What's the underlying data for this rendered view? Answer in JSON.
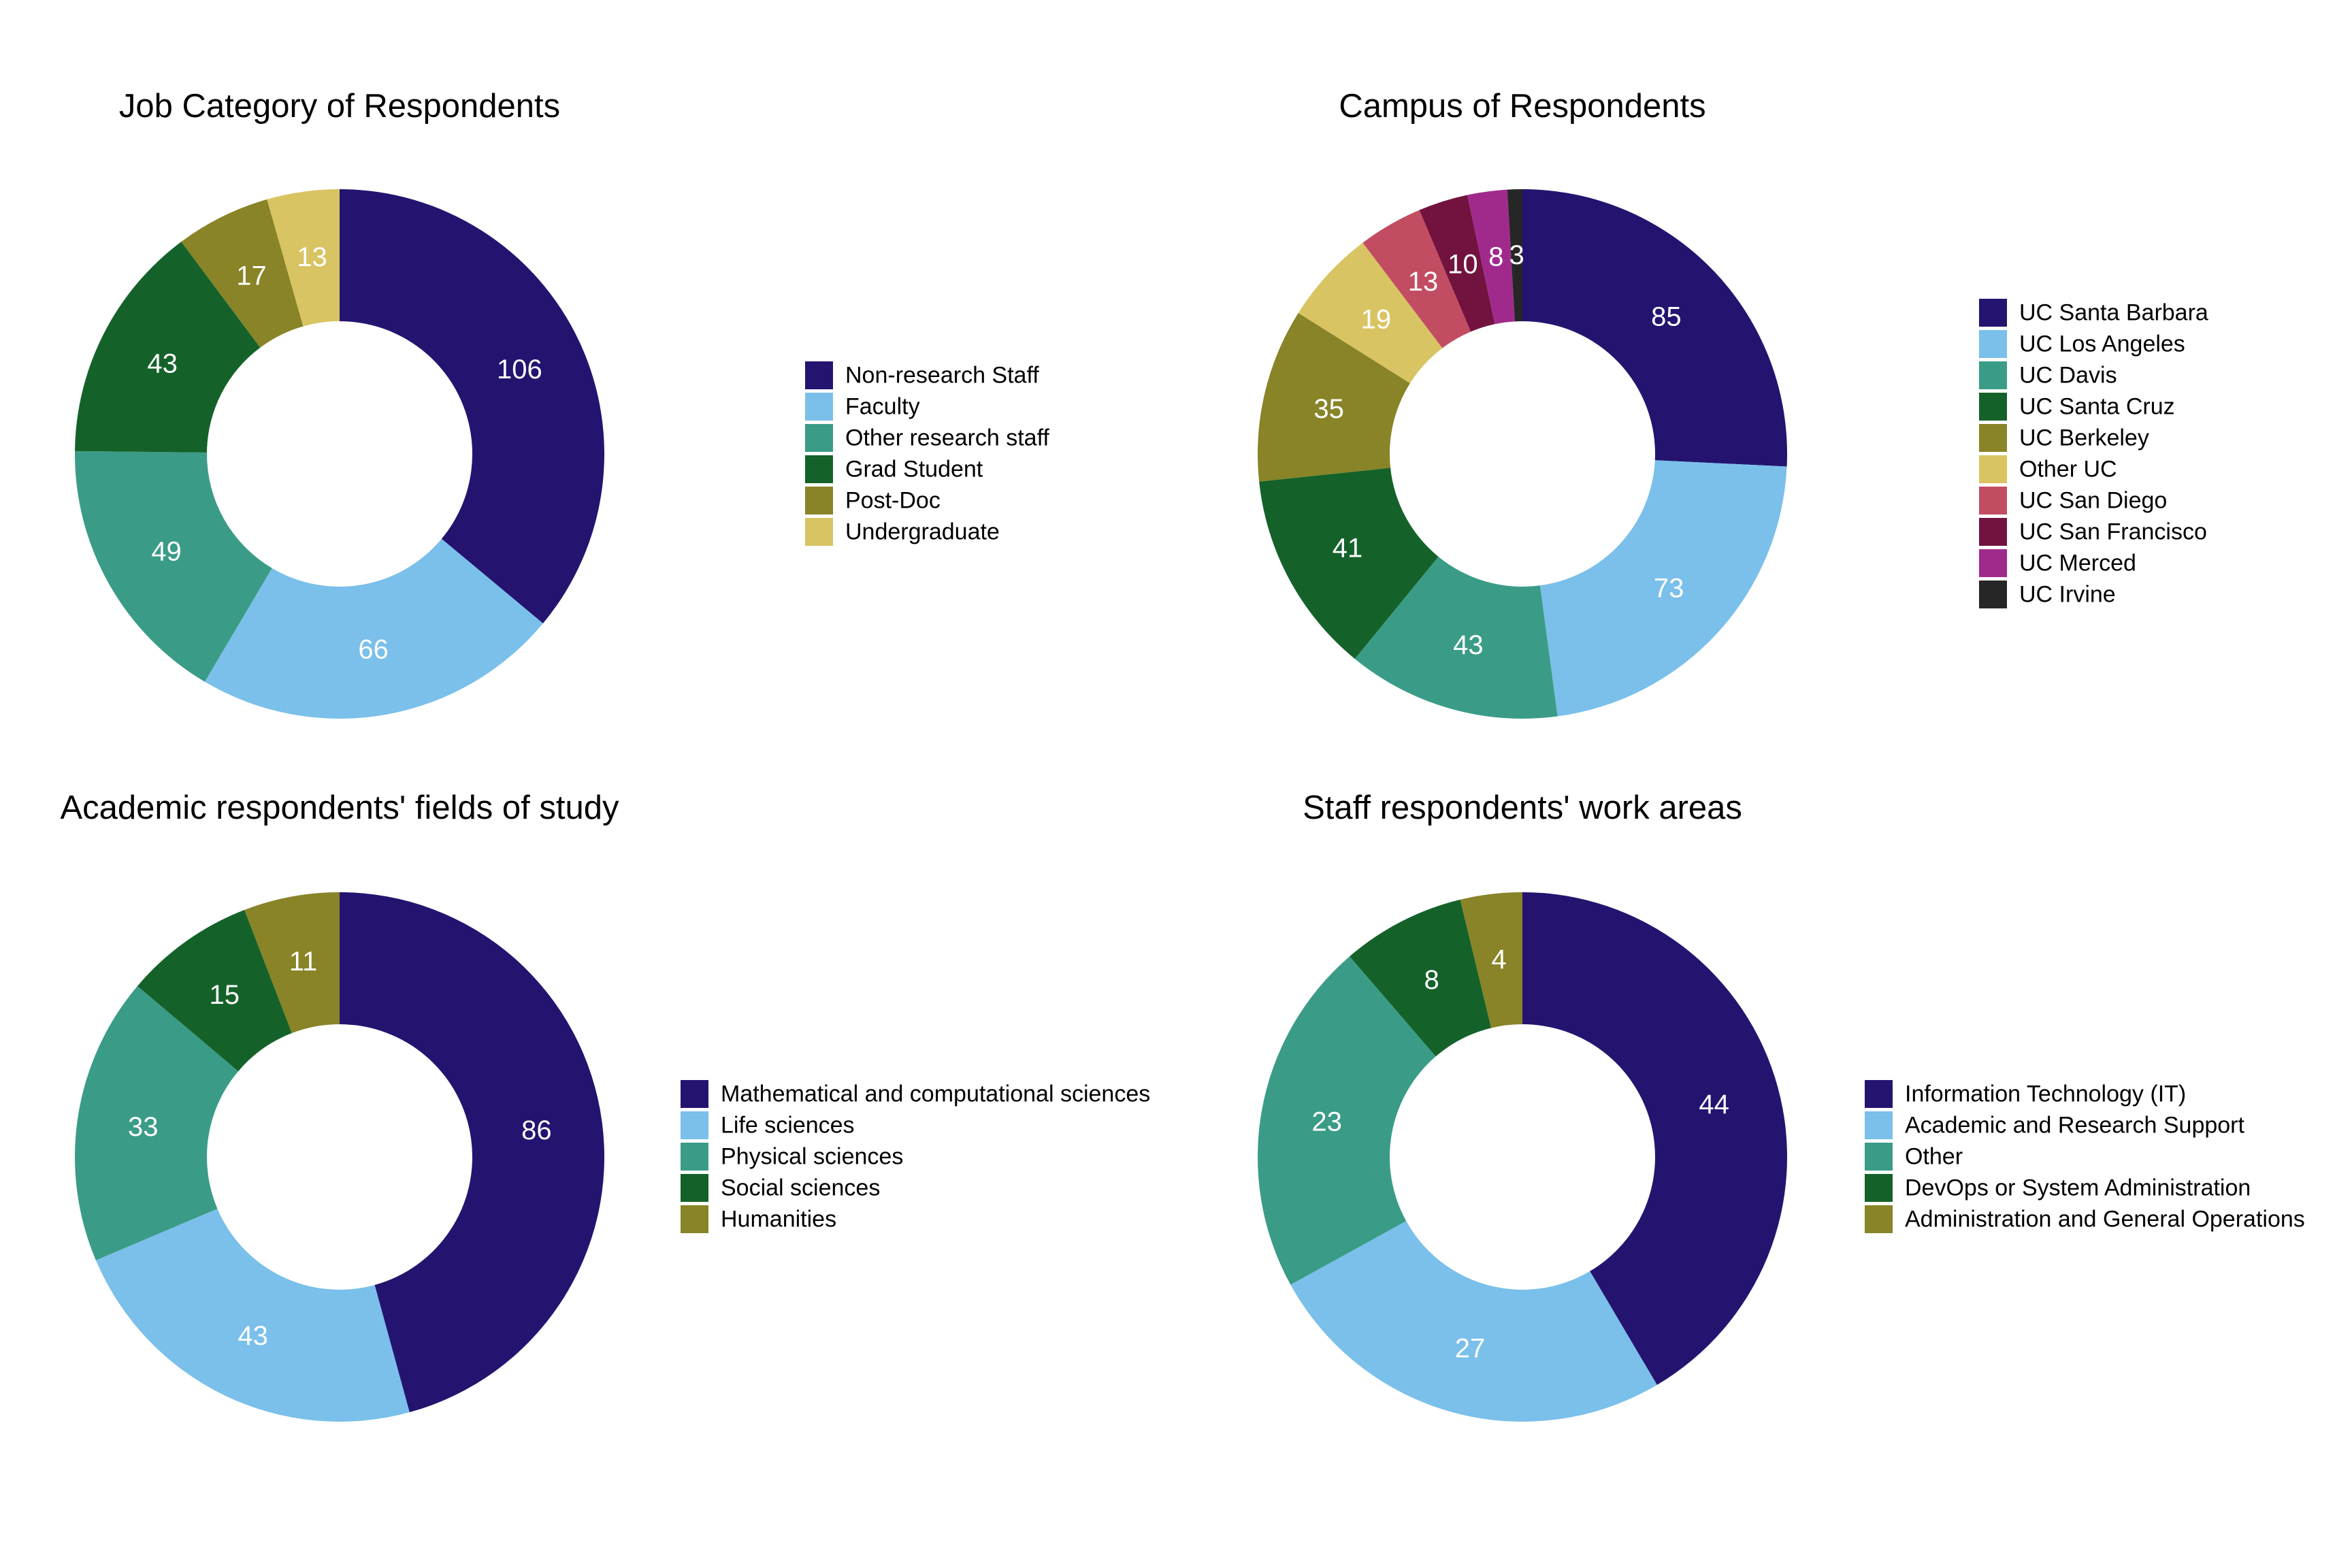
{
  "chart_data": [
    {
      "type": "donut",
      "title": "Job Category of Respondents",
      "categories": [
        "Non-research Staff",
        "Faculty",
        "Other research staff",
        "Grad Student",
        "Post-Doc",
        "Undergraduate"
      ],
      "values": [
        106,
        66,
        49,
        43,
        17,
        13
      ],
      "colors": [
        "#241470",
        "#7ac0ea",
        "#3a9c86",
        "#14622a",
        "#888427",
        "#d8c462"
      ],
      "legend": "right",
      "start": "top",
      "direction": "clockwise"
    },
    {
      "type": "donut",
      "title": "Campus of Respondents",
      "categories": [
        "UC Santa Barbara",
        "UC Los Angeles",
        "UC Davis",
        "UC Santa Cruz",
        "UC Berkeley",
        "Other UC",
        "UC San Diego",
        "UC San Francisco",
        "UC Merced",
        "UC Irvine"
      ],
      "values": [
        85,
        73,
        43,
        41,
        35,
        19,
        13,
        10,
        8,
        3
      ],
      "colors": [
        "#241470",
        "#7ac0ea",
        "#3a9c86",
        "#14622a",
        "#888427",
        "#d8c462",
        "#c24d62",
        "#72133f",
        "#a02a8c",
        "#262626"
      ],
      "legend": "right",
      "start": "top",
      "direction": "clockwise"
    },
    {
      "type": "donut",
      "title": "Academic respondents' fields of study",
      "categories": [
        "Mathematical and computational sciences",
        "Life sciences",
        "Physical sciences",
        "Social sciences",
        "Humanities"
      ],
      "values": [
        86,
        43,
        33,
        15,
        11
      ],
      "colors": [
        "#241470",
        "#7ac0ea",
        "#3a9c86",
        "#14622a",
        "#888427"
      ],
      "legend": "right",
      "start": "top",
      "direction": "clockwise"
    },
    {
      "type": "donut",
      "title": "Staff respondents' work areas",
      "categories": [
        "Information Technology (IT)",
        "Academic and Research Support",
        "Other",
        "DevOps or System Administration",
        "Administration and General Operations"
      ],
      "values": [
        44,
        27,
        23,
        8,
        4
      ],
      "colors": [
        "#241470",
        "#7ac0ea",
        "#3a9c86",
        "#14622a",
        "#888427"
      ],
      "legend": "right",
      "start": "top",
      "direction": "clockwise"
    }
  ]
}
